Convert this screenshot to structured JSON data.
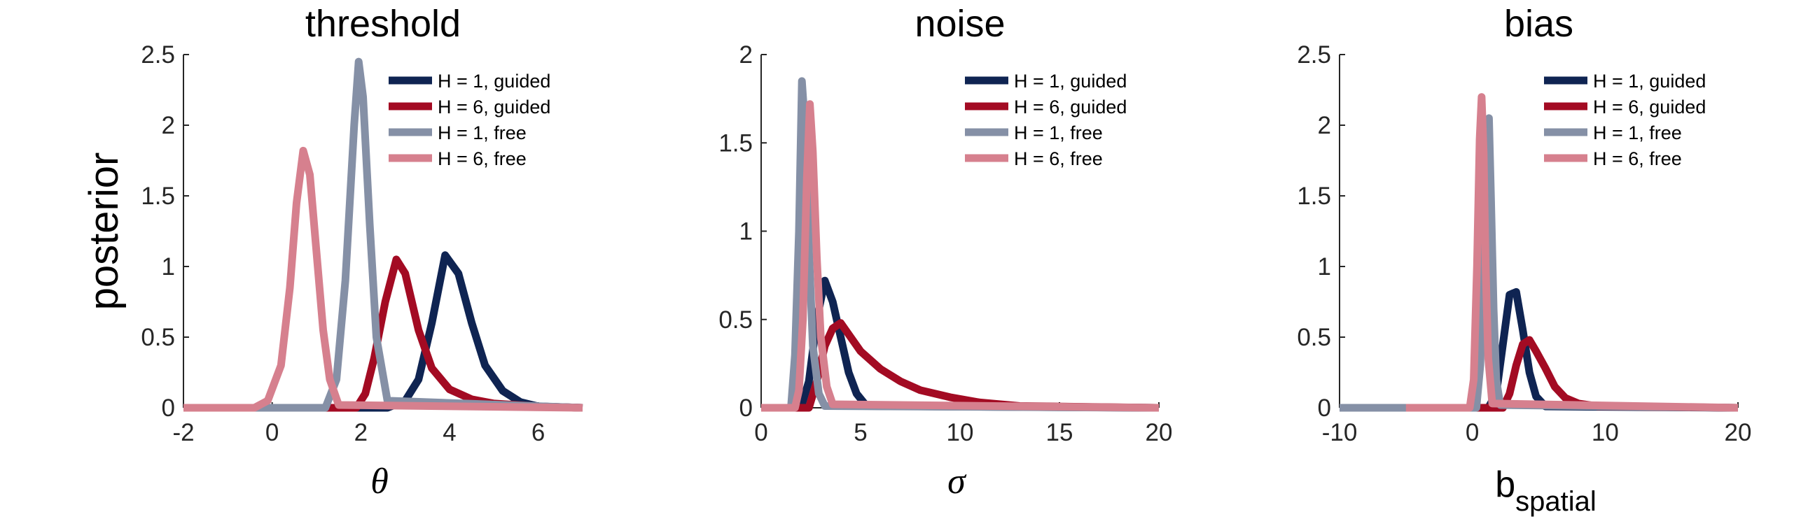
{
  "colors": {
    "H = 1, guided": "#0f2452",
    "H = 6, guided": "#a30b23",
    "H = 1, free": "#8590a6",
    "H = 6, free": "#d6808e"
  },
  "chart_data": [
    {
      "type": "line",
      "title": "threshold",
      "xlabel": "θ",
      "ylabel": "posterior",
      "xlim": [
        -2,
        7
      ],
      "ylim": [
        0,
        2.5
      ],
      "xticks": [
        "-2",
        "0",
        "2",
        "4",
        "6"
      ],
      "yticks": [
        "0",
        "0.5",
        "1",
        "1.5",
        "2",
        "2.5"
      ],
      "legend_position": "top-right",
      "series": [
        {
          "name": "H = 1, guided",
          "x": [
            -2,
            2.6,
            3.0,
            3.3,
            3.6,
            3.9,
            4.2,
            4.5,
            4.8,
            5.2,
            5.6,
            6.0,
            7
          ],
          "y": [
            0,
            0,
            0.05,
            0.2,
            0.6,
            1.08,
            0.95,
            0.6,
            0.3,
            0.12,
            0.04,
            0.01,
            0
          ]
        },
        {
          "name": "H = 6, guided",
          "x": [
            -2,
            1.9,
            2.1,
            2.3,
            2.55,
            2.8,
            3.0,
            3.3,
            3.6,
            4.0,
            4.5,
            5.0,
            6.0,
            7
          ],
          "y": [
            0,
            0,
            0.1,
            0.35,
            0.75,
            1.05,
            0.95,
            0.55,
            0.28,
            0.13,
            0.06,
            0.03,
            0.01,
            0
          ]
        },
        {
          "name": "H = 1, free",
          "x": [
            -2,
            1.2,
            1.45,
            1.65,
            1.85,
            1.95,
            2.05,
            2.2,
            2.35,
            2.6,
            7
          ],
          "y": [
            0,
            0,
            0.2,
            0.9,
            2.0,
            2.45,
            2.2,
            1.3,
            0.5,
            0.05,
            0
          ]
        },
        {
          "name": "H = 6, free",
          "x": [
            -2,
            -0.4,
            -0.1,
            0.2,
            0.4,
            0.55,
            0.7,
            0.85,
            1.0,
            1.15,
            1.3,
            1.5,
            7
          ],
          "y": [
            0,
            0,
            0.05,
            0.3,
            0.85,
            1.45,
            1.82,
            1.65,
            1.1,
            0.55,
            0.2,
            0.02,
            0
          ]
        }
      ]
    },
    {
      "type": "line",
      "title": "noise",
      "xlabel": "σ",
      "ylabel": "",
      "xlim": [
        0,
        20
      ],
      "ylim": [
        0,
        2
      ],
      "xticks": [
        "0",
        "5",
        "10",
        "15",
        "20"
      ],
      "yticks": [
        "0",
        "0.5",
        "1",
        "1.5",
        "2"
      ],
      "legend_position": "top-right",
      "series": [
        {
          "name": "H = 1, guided",
          "x": [
            0,
            2.0,
            2.4,
            2.8,
            3.2,
            3.6,
            4.0,
            4.4,
            4.8,
            5.3,
            20
          ],
          "y": [
            0,
            0,
            0.15,
            0.5,
            0.72,
            0.6,
            0.4,
            0.2,
            0.08,
            0.01,
            0
          ]
        },
        {
          "name": "H = 6, guided",
          "x": [
            0,
            2.4,
            2.8,
            3.2,
            3.6,
            4.0,
            4.5,
            5.0,
            6.0,
            7.0,
            8.0,
            9.5,
            11,
            13,
            20
          ],
          "y": [
            0,
            0,
            0.15,
            0.35,
            0.45,
            0.48,
            0.4,
            0.32,
            0.22,
            0.15,
            0.1,
            0.06,
            0.03,
            0.01,
            0
          ]
        },
        {
          "name": "H = 1, free",
          "x": [
            0,
            1.5,
            1.7,
            1.9,
            2.05,
            2.2,
            2.4,
            2.6,
            2.9,
            3.2,
            20
          ],
          "y": [
            0,
            0,
            0.3,
            1.0,
            1.85,
            1.6,
            0.9,
            0.35,
            0.08,
            0.01,
            0
          ]
        },
        {
          "name": "H = 6, free",
          "x": [
            0,
            1.7,
            1.9,
            2.1,
            2.3,
            2.45,
            2.6,
            2.8,
            3.0,
            3.3,
            3.6,
            20
          ],
          "y": [
            0,
            0,
            0.1,
            0.5,
            1.3,
            1.72,
            1.45,
            0.85,
            0.4,
            0.12,
            0.02,
            0
          ]
        }
      ]
    },
    {
      "type": "line",
      "title": "bias",
      "xlabel": "b",
      "xlabel_sub": "spatial",
      "ylabel": "",
      "xlim": [
        -10,
        20
      ],
      "ylim": [
        0,
        2.5
      ],
      "xticks": [
        "-10",
        "0",
        "10",
        "20"
      ],
      "yticks": [
        "0",
        "0.5",
        "1",
        "1.5",
        "2",
        "2.5"
      ],
      "legend_position": "top-right",
      "series": [
        {
          "name": "H = 1, guided",
          "x": [
            -10,
            1.2,
            1.8,
            2.3,
            2.8,
            3.3,
            3.8,
            4.3,
            4.8,
            5.5,
            20
          ],
          "y": [
            0,
            0,
            0.1,
            0.45,
            0.8,
            0.82,
            0.55,
            0.25,
            0.08,
            0.01,
            0
          ]
        },
        {
          "name": "H = 6, guided",
          "x": [
            -5,
            2.3,
            2.8,
            3.3,
            3.8,
            4.3,
            4.8,
            5.5,
            6.2,
            7.0,
            8.0,
            9.5,
            20
          ],
          "y": [
            0,
            0,
            0.1,
            0.3,
            0.45,
            0.48,
            0.4,
            0.28,
            0.15,
            0.07,
            0.03,
            0.01,
            0
          ]
        },
        {
          "name": "H = 1, free",
          "x": [
            -10,
            0.3,
            0.6,
            0.9,
            1.1,
            1.25,
            1.4,
            1.6,
            1.8,
            2.1,
            20
          ],
          "y": [
            0,
            0,
            0.3,
            1.2,
            2.0,
            2.05,
            1.5,
            0.7,
            0.2,
            0.02,
            0
          ]
        },
        {
          "name": "H = 6, free",
          "x": [
            -5,
            -0.2,
            0.1,
            0.35,
            0.55,
            0.7,
            0.85,
            1.0,
            1.2,
            1.5,
            20
          ],
          "y": [
            0,
            0,
            0.2,
            1.0,
            1.9,
            2.2,
            1.8,
            1.0,
            0.35,
            0.03,
            0
          ]
        }
      ]
    }
  ]
}
